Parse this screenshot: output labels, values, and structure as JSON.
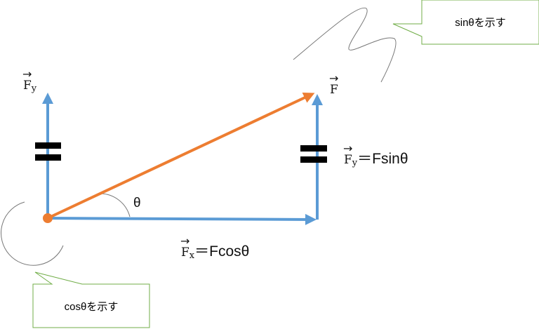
{
  "colors": {
    "component_vector": "#5b9bd5",
    "force_vector": "#ed7d31",
    "callout_border": "#70ad47",
    "equals_marks": "#000000"
  },
  "labels": {
    "fy_left": {
      "symbol": "F",
      "sub": "y"
    },
    "f_main": {
      "symbol": "F"
    },
    "fy_right": {
      "symbol": "F",
      "sub": "y",
      "expr": "＝Fsinθ"
    },
    "fx": {
      "symbol": "F",
      "sub": "x",
      "expr": "＝Fcosθ"
    },
    "theta": "θ"
  },
  "callouts": {
    "sin": "sinθを示す",
    "cos": "cosθを示す"
  }
}
